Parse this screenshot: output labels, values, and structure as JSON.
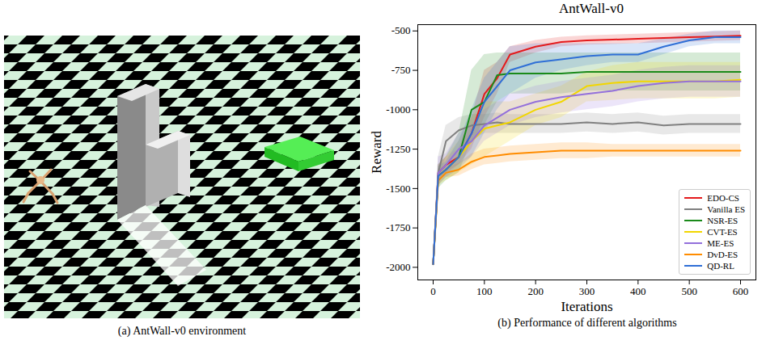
{
  "environment_panel": {
    "caption": "(a) AntWall-v0 environment"
  },
  "chart_data": {
    "type": "line",
    "title": "AntWall-v0",
    "caption": "(b) Performance of different algorithms",
    "x_label": "Iterations",
    "y_label": "Reward",
    "x": [
      0,
      10,
      25,
      50,
      75,
      100,
      125,
      150,
      200,
      250,
      300,
      350,
      400,
      450,
      500,
      550,
      600
    ],
    "xlim": [
      -30,
      630
    ],
    "xticks": [
      0,
      100,
      200,
      300,
      400,
      500,
      600
    ],
    "ylim": [
      -2080,
      -460
    ],
    "yticks": [
      -2000,
      -1750,
      -1500,
      -1250,
      -1000,
      -750,
      -500
    ],
    "grid": false,
    "legend": "lower right",
    "series": [
      {
        "name": "EDO-CS",
        "color": "#e41a1c",
        "values": [
          -1980,
          -1400,
          -1350,
          -1300,
          -1150,
          -900,
          -800,
          -650,
          -600,
          -570,
          -560,
          -555,
          -550,
          -545,
          -540,
          -535,
          -530
        ],
        "lower": [
          -2000,
          -1450,
          -1400,
          -1350,
          -1250,
          -1050,
          -900,
          -700,
          -640,
          -600,
          -590,
          -585,
          -580,
          -575,
          -570,
          -565,
          -560
        ],
        "upper": [
          -1960,
          -1350,
          -1300,
          -1250,
          -1050,
          -750,
          -700,
          -600,
          -560,
          -540,
          -530,
          -525,
          -520,
          -515,
          -510,
          -505,
          -500
        ]
      },
      {
        "name": "Vanilla ES",
        "color": "#808080",
        "values": [
          -1980,
          -1400,
          -1200,
          -1130,
          -1100,
          -1090,
          -1080,
          -1090,
          -1090,
          -1090,
          -1080,
          -1090,
          -1080,
          -1100,
          -1090,
          -1090,
          -1090
        ],
        "lower": [
          -2000,
          -1450,
          -1300,
          -1250,
          -1200,
          -1150,
          -1150,
          -1150,
          -1150,
          -1150,
          -1140,
          -1150,
          -1140,
          -1160,
          -1150,
          -1150,
          -1150
        ],
        "upper": [
          -1960,
          -1300,
          -1100,
          -1050,
          -1030,
          -1030,
          -1020,
          -1030,
          -1030,
          -1030,
          -1020,
          -1030,
          -1020,
          -1040,
          -1030,
          -1030,
          -1030
        ]
      },
      {
        "name": "NSR-ES",
        "color": "#1a8a1a",
        "values": [
          -1980,
          -1420,
          -1380,
          -1300,
          -1000,
          -950,
          -780,
          -770,
          -770,
          -770,
          -760,
          -760,
          -760,
          -760,
          -760,
          -760,
          -760
        ],
        "lower": [
          -2000,
          -1500,
          -1450,
          -1400,
          -1200,
          -1100,
          -950,
          -900,
          -900,
          -900,
          -880,
          -880,
          -880,
          -880,
          -880,
          -880,
          -880
        ],
        "upper": [
          -1960,
          -1350,
          -1300,
          -1150,
          -750,
          -650,
          -640,
          -640,
          -640,
          -640,
          -640,
          -640,
          -640,
          -640,
          -640,
          -640,
          -640
        ]
      },
      {
        "name": "CVT-ES",
        "color": "#f2d600",
        "values": [
          -1980,
          -1420,
          -1380,
          -1300,
          -1200,
          -1120,
          -1100,
          -1080,
          -1000,
          -950,
          -850,
          -830,
          -820,
          -820,
          -820,
          -820,
          -810
        ],
        "lower": [
          -2000,
          -1480,
          -1450,
          -1400,
          -1350,
          -1300,
          -1250,
          -1200,
          -1100,
          -1050,
          -950,
          -940,
          -930,
          -930,
          -930,
          -930,
          -920
        ],
        "upper": [
          -1960,
          -1360,
          -1300,
          -1200,
          -1050,
          -950,
          -950,
          -950,
          -900,
          -850,
          -760,
          -720,
          -700,
          -700,
          -700,
          -700,
          -700
        ]
      },
      {
        "name": "ME-ES",
        "color": "#9370db",
        "values": [
          -1980,
          -1400,
          -1350,
          -1250,
          -1200,
          -1100,
          -1050,
          -1000,
          -950,
          -920,
          -900,
          -880,
          -850,
          -830,
          -820,
          -820,
          -820
        ],
        "lower": [
          -2000,
          -1450,
          -1420,
          -1350,
          -1300,
          -1200,
          -1150,
          -1100,
          -1050,
          -1020,
          -1000,
          -980,
          -950,
          -930,
          -920,
          -920,
          -920
        ],
        "upper": [
          -1960,
          -1300,
          -1280,
          -1150,
          -1100,
          -1000,
          -950,
          -900,
          -850,
          -820,
          -800,
          -780,
          -750,
          -730,
          -720,
          -720,
          -720
        ]
      },
      {
        "name": "DvD-ES",
        "color": "#ff8c00",
        "values": [
          -1980,
          -1450,
          -1400,
          -1380,
          -1330,
          -1300,
          -1290,
          -1280,
          -1270,
          -1260,
          -1260,
          -1260,
          -1260,
          -1260,
          -1260,
          -1260,
          -1260
        ],
        "lower": [
          -2000,
          -1480,
          -1430,
          -1420,
          -1380,
          -1350,
          -1340,
          -1330,
          -1320,
          -1310,
          -1310,
          -1300,
          -1300,
          -1300,
          -1300,
          -1300,
          -1300
        ],
        "upper": [
          -1960,
          -1420,
          -1370,
          -1340,
          -1280,
          -1250,
          -1240,
          -1230,
          -1220,
          -1210,
          -1210,
          -1220,
          -1220,
          -1220,
          -1220,
          -1220,
          -1220
        ]
      },
      {
        "name": "QD-RL",
        "color": "#2f6fd6",
        "values": [
          -1980,
          -1420,
          -1380,
          -1300,
          -1150,
          -950,
          -850,
          -750,
          -700,
          -680,
          -660,
          -650,
          -650,
          -600,
          -560,
          -540,
          -540
        ],
        "lower": [
          -2000,
          -1480,
          -1430,
          -1380,
          -1300,
          -1150,
          -1000,
          -900,
          -800,
          -750,
          -720,
          -700,
          -700,
          -650,
          -600,
          -580,
          -580
        ],
        "upper": [
          -1960,
          -1360,
          -1330,
          -1200,
          -1000,
          -800,
          -700,
          -600,
          -580,
          -580,
          -580,
          -580,
          -580,
          -550,
          -520,
          -500,
          -500
        ]
      }
    ]
  }
}
